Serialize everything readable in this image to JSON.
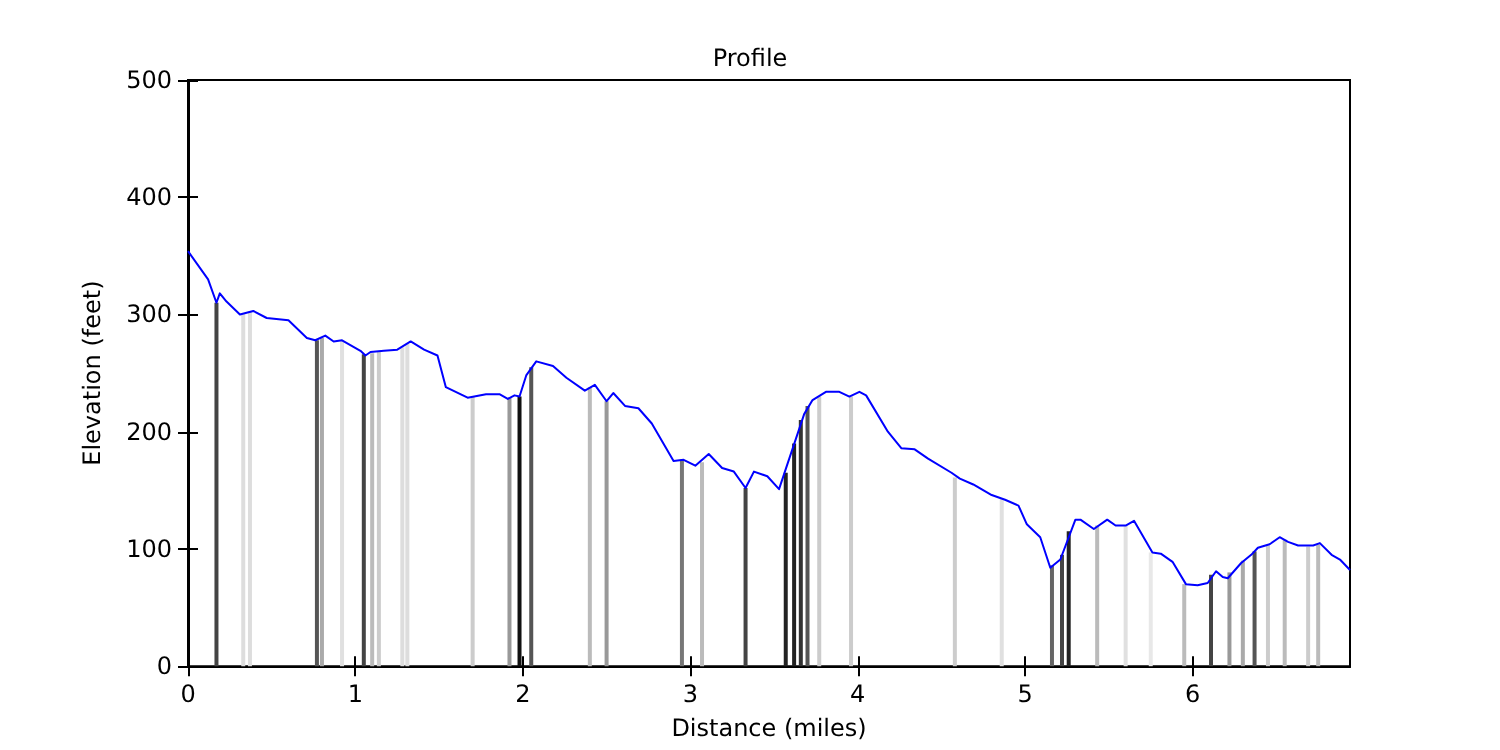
{
  "chart_data": {
    "type": "line",
    "title": "Profile",
    "xlabel": "Distance (miles)",
    "ylabel": "Elevation (feet)",
    "xlim": [
      0,
      6.94
    ],
    "xticks": [
      0,
      1,
      2,
      3,
      4,
      5,
      6
    ],
    "ylim": [
      0,
      500
    ],
    "yticks": [
      0,
      100,
      200,
      300,
      400,
      500
    ],
    "grid": false,
    "marker": "none",
    "line_style": "solid",
    "series": [
      {
        "type": "bar",
        "x": [
          0.17,
          0.33,
          0.37,
          0.77,
          0.8,
          0.92,
          1.05,
          1.1,
          1.14,
          1.28,
          1.31,
          1.7,
          1.92,
          1.98,
          2.05,
          2.4,
          2.5,
          2.95,
          3.07,
          3.33,
          3.57,
          3.62,
          3.66,
          3.7,
          3.77,
          3.96,
          4.58,
          4.86,
          5.16,
          5.22,
          5.26,
          5.43,
          5.6,
          5.75,
          5.95,
          6.11,
          6.22,
          6.3,
          6.37,
          6.45,
          6.55,
          6.69,
          6.75
        ],
        "values": [
          310,
          301,
          303,
          278,
          280,
          278,
          266,
          267,
          268,
          272,
          275,
          230,
          229,
          230,
          255,
          238,
          226,
          176,
          174,
          152,
          165,
          190,
          210,
          222,
          230,
          230,
          161,
          143,
          86,
          95,
          115,
          120,
          120,
          97,
          70,
          78,
          80,
          90,
          98,
          103,
          108,
          102,
          104
        ],
        "colors": [
          "#444444",
          "#dddddd",
          "#dddddd",
          "#555555",
          "#aaaaaa",
          "#e0e0e0",
          "#444444",
          "#bbbbbb",
          "#cccccc",
          "#dddddd",
          "#dddddd",
          "#cccccc",
          "#999999",
          "#111111",
          "#555555",
          "#bbbbbb",
          "#999999",
          "#777777",
          "#bbbbbb",
          "#444444",
          "#222222",
          "#222222",
          "#333333",
          "#555555",
          "#cccccc",
          "#cccccc",
          "#cccccc",
          "#e0e0e0",
          "#666666",
          "#444444",
          "#222222",
          "#bbbbbb",
          "#e0e0e0",
          "#e8e8e8",
          "#bbbbbb",
          "#444444",
          "#999999",
          "#aaaaaa",
          "#555555",
          "#cccccc",
          "#bbbbbb",
          "#cccccc",
          "#bbbbbb"
        ]
      },
      {
        "color": "#0000ff",
        "x": [
          0,
          0.12,
          0.17,
          0.19,
          0.23,
          0.31,
          0.39,
          0.47,
          0.6,
          0.71,
          0.76,
          0.82,
          0.87,
          0.92,
          1.03,
          1.06,
          1.09,
          1.17,
          1.25,
          1.33,
          1.41,
          1.49,
          1.54,
          1.67,
          1.78,
          1.86,
          1.91,
          1.95,
          1.98,
          2.02,
          2.08,
          2.18,
          2.26,
          2.37,
          2.43,
          2.5,
          2.54,
          2.61,
          2.69,
          2.77,
          2.9,
          2.96,
          3.03,
          3.11,
          3.19,
          3.26,
          3.33,
          3.38,
          3.46,
          3.53,
          3.68,
          3.73,
          3.81,
          3.89,
          3.95,
          4.01,
          4.05,
          4.18,
          4.26,
          4.34,
          4.42,
          4.56,
          4.61,
          4.69,
          4.8,
          4.88,
          4.96,
          5.01,
          5.09,
          5.15,
          5.21,
          5.3,
          5.33,
          5.41,
          5.49,
          5.54,
          5.6,
          5.65,
          5.76,
          5.81,
          5.88,
          5.96,
          6.03,
          6.09,
          6.14,
          6.18,
          6.21,
          6.29,
          6.35,
          6.39,
          6.46,
          6.52,
          6.57,
          6.63,
          6.72,
          6.76,
          6.83,
          6.88,
          6.94
        ],
        "values": [
          354,
          330,
          310,
          318,
          311,
          300,
          303,
          297,
          295,
          280,
          278,
          282,
          277,
          278,
          269,
          265,
          268,
          269,
          270,
          277,
          270,
          265,
          238,
          229,
          232,
          232,
          228,
          231,
          230,
          248,
          260,
          256,
          246,
          235,
          240,
          226,
          233,
          222,
          220,
          207,
          175,
          176,
          171,
          181,
          169,
          166,
          152,
          166,
          162,
          151,
          215,
          227,
          234,
          234,
          230,
          234,
          231,
          200,
          186,
          185,
          177,
          165,
          160,
          155,
          146,
          142,
          137,
          121,
          110,
          84,
          91,
          125,
          125,
          117,
          125,
          120,
          120,
          124,
          97,
          96,
          89,
          70,
          69,
          71,
          81,
          76,
          75,
          88,
          95,
          101,
          104,
          110,
          106,
          103,
          103,
          105,
          95,
          91,
          82
        ]
      }
    ]
  }
}
